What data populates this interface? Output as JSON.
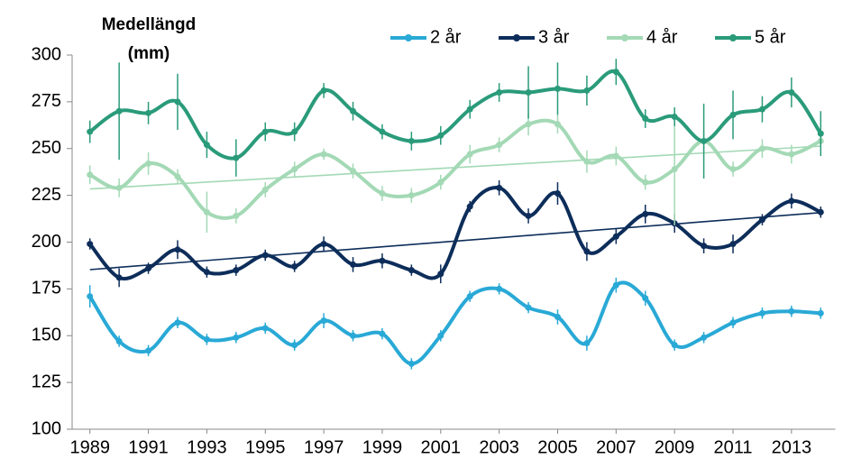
{
  "chart_data": {
    "type": "line",
    "ylabel": [
      "Medellängd",
      "(mm)"
    ],
    "x": [
      1989,
      1990,
      1991,
      1992,
      1993,
      1994,
      1995,
      1996,
      1997,
      1998,
      1999,
      2000,
      2001,
      2002,
      2003,
      2004,
      2005,
      2006,
      2007,
      2008,
      2009,
      2010,
      2011,
      2012,
      2013,
      2014
    ],
    "xlim": [
      1988.5,
      2014.5
    ],
    "xticks": [
      1989,
      1991,
      1993,
      1995,
      1997,
      1999,
      2001,
      2003,
      2005,
      2007,
      2009,
      2011,
      2013
    ],
    "ylim": [
      100,
      300
    ],
    "yticks": [
      100,
      125,
      150,
      175,
      200,
      225,
      250,
      275,
      300
    ],
    "grid": false,
    "smooth": true,
    "legend": "top-right",
    "series": [
      {
        "name": "2 år",
        "color": "#29a9d6",
        "trendline": false,
        "values": [
          171,
          147,
          142,
          157,
          148,
          149,
          154,
          145,
          158,
          150,
          151,
          135,
          150,
          171,
          175,
          165,
          160,
          146,
          177,
          170,
          145,
          149,
          157,
          162,
          163,
          162
        ],
        "errors": [
          6,
          3,
          3,
          3,
          3,
          3,
          3,
          3,
          4,
          3,
          3,
          3,
          3,
          3,
          3,
          3,
          4,
          4,
          4,
          4,
          3,
          3,
          3,
          3,
          3,
          3
        ]
      },
      {
        "name": "3 år",
        "color": "#0d2d5a",
        "trendline": true,
        "values": [
          199,
          181,
          186,
          196,
          184,
          185,
          193,
          187,
          199,
          188,
          190,
          185,
          183,
          219,
          229,
          214,
          226,
          195,
          203,
          215,
          210,
          198,
          199,
          212,
          222,
          216
        ],
        "errors": [
          3,
          5,
          3,
          5,
          3,
          3,
          3,
          3,
          4,
          4,
          4,
          3,
          5,
          3,
          4,
          4,
          6,
          5,
          4,
          5,
          5,
          4,
          5,
          3,
          4,
          3
        ]
      },
      {
        "name": "4 år",
        "color": "#a3d9b5",
        "trendline": true,
        "values": [
          236,
          229,
          242,
          235,
          216,
          214,
          228,
          239,
          247,
          238,
          226,
          225,
          232,
          247,
          252,
          263,
          263,
          243,
          246,
          232,
          239,
          254,
          239,
          250,
          247,
          254
        ],
        "errors": [
          5,
          5,
          6,
          4,
          11,
          4,
          4,
          4,
          3,
          4,
          4,
          4,
          4,
          5,
          4,
          6,
          5,
          6,
          5,
          4,
          30,
          6,
          4,
          5,
          5,
          4
        ]
      },
      {
        "name": "5 år",
        "color": "#2a9b7a",
        "trendline": false,
        "values": [
          259,
          270,
          269,
          275,
          252,
          245,
          259,
          259,
          281,
          270,
          259,
          254,
          257,
          271,
          280,
          280,
          282,
          281,
          291,
          266,
          267,
          254,
          268,
          271,
          280,
          258
        ],
        "errors": [
          6,
          26,
          6,
          15,
          7,
          10,
          5,
          5,
          4,
          5,
          4,
          5,
          5,
          5,
          5,
          14,
          14,
          8,
          7,
          5,
          5,
          20,
          13,
          7,
          8,
          12
        ]
      }
    ]
  }
}
